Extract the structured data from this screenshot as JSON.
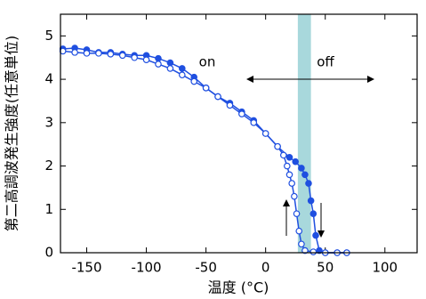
{
  "chart_data": {
    "type": "scatter",
    "x_label": "温度 (°C)",
    "y_label": "第二高調波発生強度(任意単位)",
    "annotations": [
      "on",
      "off"
    ],
    "highlight_x": [
      27,
      38
    ],
    "highlight_color": "#a8d8dc",
    "xlim": [
      -172,
      127
    ],
    "ylim": [
      0,
      5.5
    ],
    "xticks": [
      -150,
      -100,
      -50,
      0,
      50,
      100
    ],
    "yticks": [
      0,
      1,
      2,
      3,
      4,
      5
    ],
    "series": [
      {
        "color": "#1f4fe0",
        "marker": "filled",
        "x": [
          -170,
          -160,
          -150,
          -140,
          -130,
          -120,
          -110,
          -100,
          -90,
          -80,
          -70,
          -60,
          -50,
          -40,
          -30,
          -20,
          -10,
          0,
          10,
          20,
          25,
          30,
          33,
          36,
          38,
          40,
          42,
          45,
          50,
          60,
          68
        ],
        "values": [
          4.7,
          4.72,
          4.68,
          4.62,
          4.62,
          4.58,
          4.55,
          4.55,
          4.48,
          4.38,
          4.25,
          4.05,
          3.8,
          3.6,
          3.45,
          3.25,
          3.05,
          2.75,
          2.45,
          2.2,
          2.1,
          1.95,
          1.8,
          1.6,
          1.2,
          0.9,
          0.4,
          0.05,
          0,
          0,
          0
        ]
      },
      {
        "color": "#1f4fe0",
        "marker": "open",
        "x": [
          -170,
          -160,
          -150,
          -140,
          -130,
          -120,
          -110,
          -100,
          -90,
          -80,
          -70,
          -60,
          -50,
          -40,
          -30,
          -20,
          -10,
          0,
          10,
          15,
          18,
          20,
          22,
          24,
          26,
          28,
          30,
          33,
          40,
          50,
          60,
          68
        ],
        "values": [
          4.65,
          4.62,
          4.6,
          4.6,
          4.58,
          4.55,
          4.5,
          4.45,
          4.35,
          4.25,
          4.1,
          3.95,
          3.8,
          3.6,
          3.4,
          3.2,
          3.0,
          2.75,
          2.45,
          2.25,
          2.0,
          1.8,
          1.6,
          1.3,
          0.9,
          0.5,
          0.2,
          0.05,
          0.02,
          0,
          0,
          0
        ]
      }
    ]
  }
}
